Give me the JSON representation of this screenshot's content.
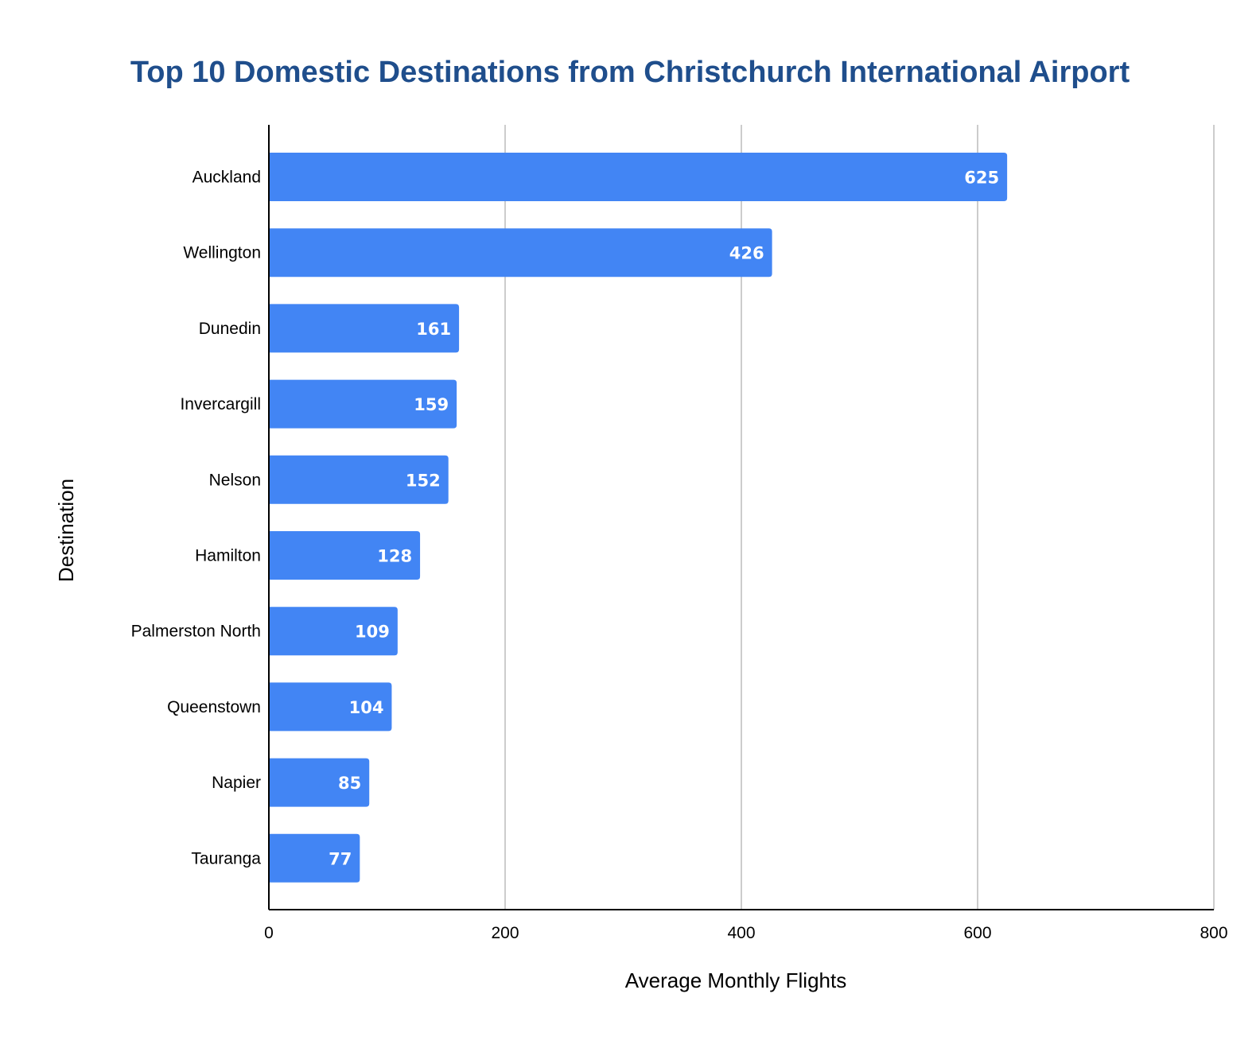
{
  "chart_data": {
    "type": "bar",
    "orientation": "horizontal",
    "title": "Top 10 Domestic Destinations from Christchurch International Airport",
    "xlabel": "Average Monthly Flights",
    "ylabel": "Destination",
    "categories": [
      "Auckland",
      "Wellington",
      "Dunedin",
      "Invercargill",
      "Nelson",
      "Hamilton",
      "Palmerston North",
      "Queenstown",
      "Napier",
      "Tauranga"
    ],
    "values": [
      625,
      426,
      161,
      159,
      152,
      128,
      109,
      104,
      85,
      77
    ],
    "xlim": [
      0,
      800
    ],
    "xticks": [
      0,
      200,
      400,
      600,
      800
    ],
    "grid": true,
    "data_labels": true,
    "colors": {
      "bar": "#4285F4",
      "title": "#1F4E8C",
      "grid": "#cccccc",
      "axis": "#000000",
      "label": "#ffffff"
    }
  }
}
